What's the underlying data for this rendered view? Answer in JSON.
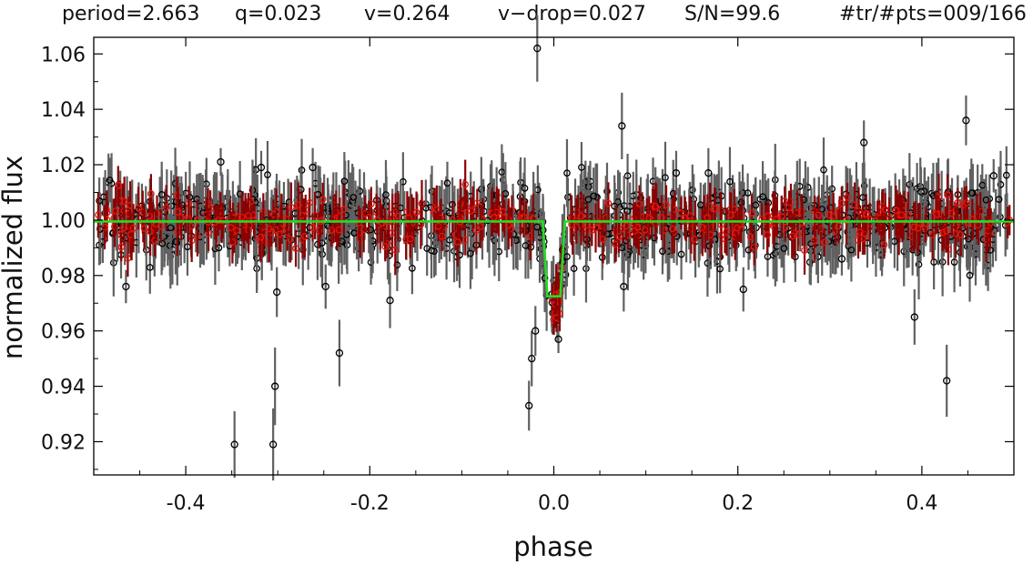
{
  "header": {
    "period": "period=2.663",
    "q": "q=0.023",
    "v": "v=0.264",
    "vdrop": "v−drop=0.027",
    "sn": "S/N=99.6",
    "trpts": "#tr/#pts=009/166"
  },
  "chart_data": {
    "type": "scatter",
    "title": "",
    "xlabel": "phase",
    "ylabel": "normalized flux",
    "xlim": [
      -0.5,
      0.5
    ],
    "ylim": [
      0.908,
      1.066
    ],
    "x_ticks": [
      -0.4,
      -0.2,
      0.0,
      0.2,
      0.4
    ],
    "x_tick_labels": [
      "-0.4",
      "-0.2",
      "0.0",
      "0.2",
      "0.4"
    ],
    "y_ticks": [
      0.92,
      0.94,
      0.96,
      0.98,
      1.0,
      1.02,
      1.04,
      1.06
    ],
    "y_tick_labels": [
      "0.92",
      "0.94",
      "0.96",
      "0.98",
      "1.00",
      "1.02",
      "1.04",
      "1.06"
    ],
    "grid": false,
    "colors": {
      "raw_points": "#000000",
      "raw_errorbars": "#606060",
      "binned_points": "#e8140c",
      "binned_errorbars": "#8b0000",
      "model": "#22dd22"
    },
    "series": [
      {
        "type": "scatter_with_errorbars",
        "baseline_flux": 1.0,
        "typical_scatter": 0.007,
        "typical_error": 0.01,
        "outliers": [
          {
            "x": -0.465,
            "y": 0.976,
            "err": 0.006
          },
          {
            "x": -0.362,
            "y": 1.021,
            "err": 0.005
          },
          {
            "x": -0.347,
            "y": 0.919,
            "err": 0.012
          },
          {
            "x": -0.318,
            "y": 1.019,
            "err": 0.006
          },
          {
            "x": -0.305,
            "y": 0.919,
            "err": 0.013
          },
          {
            "x": -0.303,
            "y": 0.94,
            "err": 0.014
          },
          {
            "x": -0.301,
            "y": 0.974,
            "err": 0.009
          },
          {
            "x": -0.275,
            "y": 1.011,
            "err": 0.008
          },
          {
            "x": -0.262,
            "y": 1.019,
            "err": 0.007
          },
          {
            "x": -0.248,
            "y": 0.976,
            "err": 0.008
          },
          {
            "x": -0.233,
            "y": 0.952,
            "err": 0.012
          },
          {
            "x": -0.178,
            "y": 0.971,
            "err": 0.01
          },
          {
            "x": -0.027,
            "y": 0.933,
            "err": 0.009
          },
          {
            "x": -0.024,
            "y": 0.95,
            "err": 0.01
          },
          {
            "x": -0.02,
            "y": 0.96,
            "err": 0.009
          },
          {
            "x": -0.018,
            "y": 1.062,
            "err": 0.012
          },
          {
            "x": 0.005,
            "y": 0.957,
            "err": 0.005
          },
          {
            "x": 0.074,
            "y": 1.034,
            "err": 0.012
          },
          {
            "x": 0.076,
            "y": 0.976,
            "err": 0.009
          },
          {
            "x": 0.133,
            "y": 1.017,
            "err": 0.008
          },
          {
            "x": 0.168,
            "y": 1.017,
            "err": 0.009
          },
          {
            "x": 0.206,
            "y": 0.975,
            "err": 0.008
          },
          {
            "x": 0.313,
            "y": 0.986,
            "err": 0.006
          },
          {
            "x": 0.337,
            "y": 1.028,
            "err": 0.008
          },
          {
            "x": 0.392,
            "y": 0.965,
            "err": 0.01
          },
          {
            "x": 0.427,
            "y": 0.942,
            "err": 0.013
          },
          {
            "x": 0.448,
            "y": 1.036,
            "err": 0.009
          },
          {
            "x": 0.478,
            "y": 1.016,
            "err": 0.006
          }
        ]
      },
      {
        "type": "scatter_with_errorbars",
        "baseline_flux": 1.0,
        "typical_scatter": 0.004,
        "typical_error": 0.007
      },
      {
        "type": "line",
        "x": [
          -0.5,
          -0.012,
          -0.007,
          0.007,
          0.012,
          0.5
        ],
        "y": [
          0.9995,
          0.9995,
          0.9725,
          0.9725,
          0.9995,
          0.9995
        ]
      }
    ]
  }
}
